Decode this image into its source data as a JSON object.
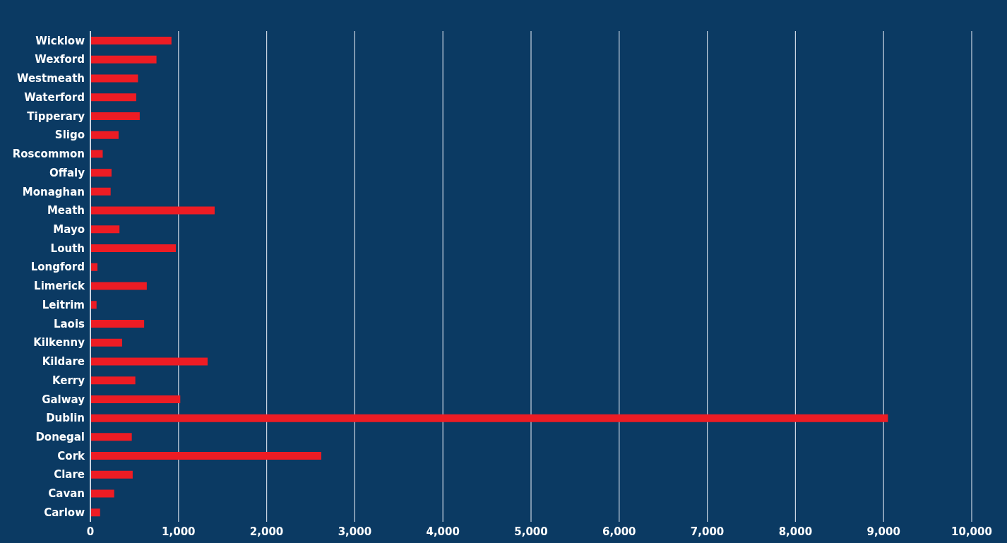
{
  "chart_data": {
    "type": "bar",
    "orientation": "horizontal",
    "categories": [
      "Wicklow",
      "Wexford",
      "Westmeath",
      "Waterford",
      "Tipperary",
      "Sligo",
      "Roscommon",
      "Offaly",
      "Monaghan",
      "Meath",
      "Mayo",
      "Louth",
      "Longford",
      "Limerick",
      "Leitrim",
      "Laois",
      "Kilkenny",
      "Kildare",
      "Kerry",
      "Galway",
      "Dublin",
      "Donegal",
      "Cork",
      "Clare",
      "Cavan",
      "Carlow"
    ],
    "values": [
      920,
      750,
      540,
      520,
      560,
      320,
      140,
      240,
      230,
      1410,
      330,
      970,
      80,
      640,
      70,
      610,
      360,
      1330,
      510,
      1020,
      9050,
      470,
      2620,
      480,
      270,
      110
    ],
    "color": "#ed1c24",
    "xlim": [
      0,
      10000
    ],
    "xticks": [
      0,
      {
        "value": 1000,
        "label": "1,000"
      },
      {
        "value": 2000,
        "label": "2,000"
      },
      {
        "value": 3000,
        "label": "3,000"
      },
      {
        "value": 4000,
        "label": "4,000"
      },
      {
        "value": 5000,
        "label": "5,000"
      },
      {
        "value": 6000,
        "label": "6,000"
      },
      {
        "value": 7000,
        "label": "7,000"
      },
      {
        "value": 8000,
        "label": "8,000"
      },
      {
        "value": 9000,
        "label": "9,000"
      },
      {
        "value": 10000,
        "label": "10,000"
      }
    ],
    "grid": "x"
  }
}
